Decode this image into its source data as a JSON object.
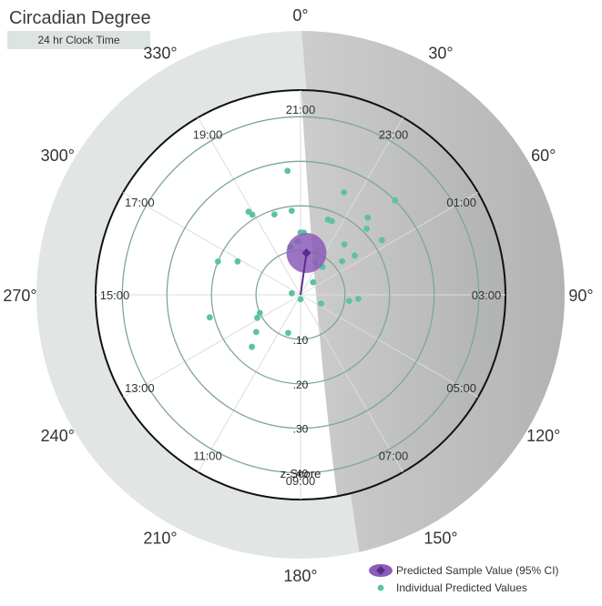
{
  "title": "Circadian Degree",
  "subtitle": "24 hr Clock Time",
  "degree_labels": [
    "0°",
    "30°",
    "60°",
    "90°",
    "120°",
    "150°",
    "180°",
    "210°",
    "240°",
    "270°",
    "300°",
    "330°"
  ],
  "clock_labels": [
    "21:00",
    "23:00",
    "01:00",
    "03:00",
    "05:00",
    "07:00",
    "09:00",
    "11:00",
    "13:00",
    "15:00",
    "17:00",
    "19:00"
  ],
  "radial_axis": {
    "ticks": [
      ".10",
      ".20",
      ".30",
      ".40"
    ],
    "tick_values": [
      0.1,
      0.2,
      0.3,
      0.4
    ],
    "label": "z-Score",
    "max": 0.46
  },
  "legend": {
    "predicted_label": "Predicted Sample Value (95% CI)",
    "individual_label": "Individual Predicted Values"
  },
  "colors": {
    "predicted": "#5a2d8c",
    "predicted_ci": "#8c5cb8",
    "individual": "#5cc3a2",
    "outer_band": "#e1e5e4",
    "shade_light": "#cdcdcd",
    "shade_dark": "#b0b2b1",
    "grid": "#7fa69b"
  },
  "chart_data": {
    "type": "scatter",
    "coordinate_system": "polar",
    "angle_unit": "degrees, clockwise from top",
    "radius_unit": "z-score",
    "predicted_sample": {
      "angle": 8,
      "radius": 0.095,
      "ci_radius": 0.045
    },
    "individual_values": [
      {
        "angle": -6,
        "radius": 0.28
      },
      {
        "angle": 23,
        "radius": 0.25
      },
      {
        "angle": 45,
        "radius": 0.3
      },
      {
        "angle": 41,
        "radius": 0.23
      },
      {
        "angle": 45,
        "radius": 0.21
      },
      {
        "angle": 56,
        "radius": 0.22
      },
      {
        "angle": 23,
        "radius": 0.18
      },
      {
        "angle": 20,
        "radius": 0.18
      },
      {
        "angle": -18,
        "radius": 0.19
      },
      {
        "angle": -32,
        "radius": 0.22
      },
      {
        "angle": -31,
        "radius": 0.21
      },
      {
        "angle": -6,
        "radius": 0.19
      },
      {
        "angle": 41,
        "radius": 0.15
      },
      {
        "angle": 54,
        "radius": 0.15
      },
      {
        "angle": 51,
        "radius": 0.12
      },
      {
        "angle": 0,
        "radius": 0.14
      },
      {
        "angle": 3,
        "radius": 0.14
      },
      {
        "angle": -12,
        "radius": 0.11
      },
      {
        "angle": -3,
        "radius": 0.12
      },
      {
        "angle": 38,
        "radius": 0.08
      },
      {
        "angle": 25,
        "radius": 0.08
      },
      {
        "angle": 45,
        "radius": 0.04
      },
      {
        "angle": 113,
        "radius": 0.05
      },
      {
        "angle": 97,
        "radius": 0.11
      },
      {
        "angle": 94,
        "radius": 0.13
      },
      {
        "angle": -68,
        "radius": 0.2
      },
      {
        "angle": -62,
        "radius": 0.16
      },
      {
        "angle": -104,
        "radius": 0.21
      },
      {
        "angle": -114,
        "radius": 0.1
      },
      {
        "angle": -118,
        "radius": 0.11
      },
      {
        "angle": -130,
        "radius": 0.13
      },
      {
        "angle": -137,
        "radius": 0.16
      },
      {
        "angle": -162,
        "radius": 0.09
      },
      {
        "angle": -80,
        "radius": 0.02
      },
      {
        "angle": 180,
        "radius": 0.01
      }
    ]
  }
}
